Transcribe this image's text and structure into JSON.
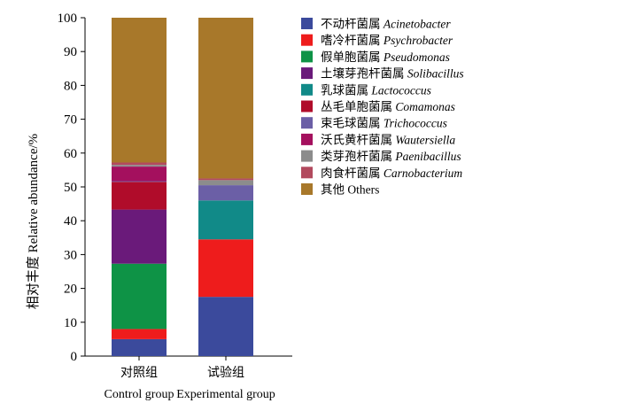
{
  "chart_data": {
    "type": "bar",
    "stacked": true,
    "categories": [
      {
        "cn": "对照组",
        "en": "Control group"
      },
      {
        "cn": "试验组",
        "en": "Experimental group"
      }
    ],
    "ylabel": {
      "cn": "相对丰度",
      "en": "Relative abundance/%"
    },
    "ylim": [
      0,
      100
    ],
    "yticks": [
      0,
      10,
      20,
      30,
      40,
      50,
      60,
      70,
      80,
      90,
      100
    ],
    "grid": false,
    "legend_position": "right",
    "series": [
      {
        "cn": "不动杆菌属",
        "latin": "Acinetobacter",
        "italic": true,
        "color": "#3b4a9c",
        "values": [
          5.0,
          17.5
        ]
      },
      {
        "cn": "嗜冷杆菌属",
        "latin": "Psychrobacter",
        "italic": true,
        "color": "#ee1c1c",
        "values": [
          3.0,
          17.0
        ]
      },
      {
        "cn": "假单胞菌属",
        "latin": "Pseudomonas",
        "italic": true,
        "color": "#0e9346",
        "values": [
          19.3,
          0.0
        ]
      },
      {
        "cn": "土壤芽孢杆菌属",
        "latin": "Solibacillus",
        "italic": true,
        "color": "#6a1a7a",
        "values": [
          16.0,
          0.0
        ]
      },
      {
        "cn": "乳球菌属",
        "latin": "Lactococcus",
        "italic": true,
        "color": "#118a88",
        "values": [
          0.0,
          11.5
        ]
      },
      {
        "cn": "丛毛单胞菌属",
        "latin": "Comamonas",
        "italic": true,
        "color": "#b00c2a",
        "values": [
          8.2,
          0.0
        ]
      },
      {
        "cn": "束毛球菌属",
        "latin": "Trichococcus",
        "italic": true,
        "color": "#6b5fa6",
        "values": [
          0.2,
          4.5
        ]
      },
      {
        "cn": "沃氏黄杆菌属",
        "latin": "Wautersiella",
        "italic": true,
        "color": "#a4105e",
        "values": [
          4.3,
          0.0
        ]
      },
      {
        "cn": "类芽孢杆菌属",
        "latin": "Paenibacillus",
        "italic": true,
        "color": "#8c8c8c",
        "values": [
          0.5,
          1.5
        ]
      },
      {
        "cn": "肉食杆菌属",
        "latin": "Carnobacterium",
        "italic": true,
        "color": "#b24a5e",
        "values": [
          0.7,
          0.5
        ]
      },
      {
        "cn": "其他",
        "latin": "Others",
        "italic": false,
        "color": "#a8782a",
        "values": [
          42.8,
          47.5
        ]
      }
    ]
  }
}
